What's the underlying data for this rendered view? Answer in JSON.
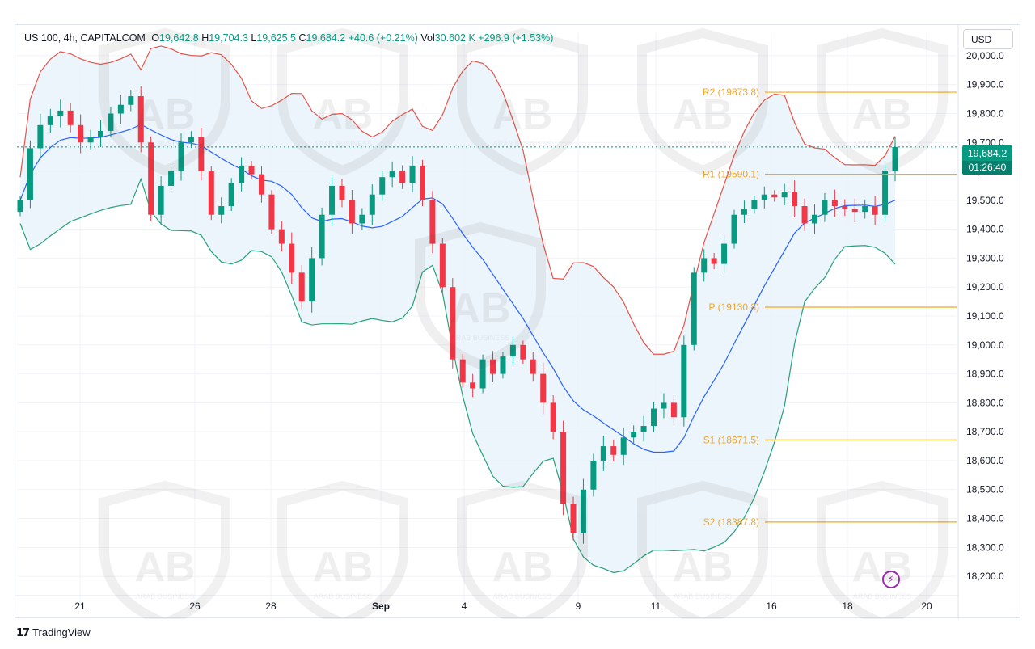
{
  "legend": {
    "symbol": "US 100, 4h, CAPITALCOM",
    "o_label": "O",
    "o_value": "19,642.8",
    "h_label": "H",
    "h_value": "19,704.3",
    "l_label": "L",
    "l_value": "19,625.5",
    "c_label": "C",
    "c_value": "19,684.2",
    "change": "+40.6 (+0.21%)",
    "vol_label": "Vol",
    "vol_value": "30.602 K",
    "vol_change": "+296.9 (+1.53%)"
  },
  "currency": "USD",
  "last_price": "19,684.2",
  "countdown": "01:26:40",
  "brand": "TradingView",
  "icons": {
    "brand_logo": "tradingview-logo-icon",
    "bolt": "lightning-bolt-icon"
  },
  "watermark_text": "ARAB BUSINESS",
  "colors": {
    "up": "#089981",
    "down": "#f23645",
    "band_upper": "#e5534b",
    "band_lower": "#26a17b",
    "basis": "#2962ff",
    "band_fill": "#eaf4fb",
    "pivot": "#f5a623",
    "grid": "#f0f3fa",
    "price_tag": "#089981"
  },
  "chart_data": {
    "type": "candlestick",
    "title": "US 100, 4h, CAPITALCOM",
    "ylim": [
      18150,
      20050
    ],
    "y_ticks": [
      "20,000.0",
      "19,900.0",
      "19,800.0",
      "19,700.0",
      "19,600.0",
      "19,500.0",
      "19,400.0",
      "19,300.0",
      "19,200.0",
      "19,100.0",
      "19,000.0",
      "18,900.0",
      "18,800.0",
      "18,700.0",
      "18,600.0",
      "18,500.0",
      "18,400.0",
      "18,300.0",
      "18,200.0"
    ],
    "x_ticks": [
      "21",
      "26",
      "28",
      "Sep",
      "4",
      "9",
      "11",
      "16",
      "18",
      "20"
    ],
    "pivot_levels": [
      {
        "name": "R2",
        "label": "R2 (19873.8)",
        "value": 19873.8
      },
      {
        "name": "R1",
        "label": "R1 (19590.1)",
        "value": 19590.1
      },
      {
        "name": "P",
        "label": "P (19130.8)",
        "value": 19130.8
      },
      {
        "name": "S1",
        "label": "S1 (18671.5)",
        "value": 18671.5
      },
      {
        "name": "S2",
        "label": "S2 (18387.8)",
        "value": 18387.8
      }
    ],
    "last_price": 19684.2,
    "price_path": [
      19500,
      19680,
      19760,
      19790,
      19810,
      19760,
      19700,
      19720,
      19740,
      19800,
      19830,
      19860,
      19700,
      19450,
      19550,
      19600,
      19700,
      19720,
      19600,
      19450,
      19480,
      19560,
      19620,
      19590,
      19520,
      19400,
      19350,
      19250,
      19150,
      19300,
      19450,
      19550,
      19500,
      19420,
      19450,
      19520,
      19580,
      19600,
      19560,
      19620,
      19500,
      19350,
      19200,
      18950,
      18870,
      18850,
      18950,
      18900,
      18960,
      19000,
      18950,
      18900,
      18800,
      18700,
      18450,
      18350,
      18500,
      18600,
      18650,
      18620,
      18680,
      18700,
      18720,
      18780,
      18800,
      18750,
      19000,
      19250,
      19300,
      19280,
      19350,
      19450,
      19470,
      19500,
      19520,
      19510,
      19530,
      19480,
      19420,
      19450,
      19500,
      19480,
      19470,
      19460,
      19480,
      19450,
      19600,
      19684
    ]
  }
}
